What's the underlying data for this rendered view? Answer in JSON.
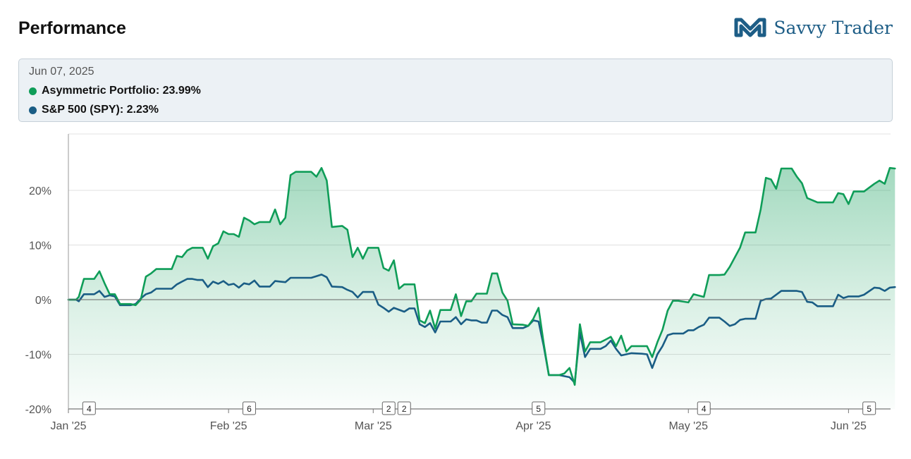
{
  "header": {
    "title": "Performance",
    "brand_name": "Savvy Trader"
  },
  "tooltip": {
    "date": "Jun 07, 2025",
    "rows": [
      {
        "label": "Asymmetric Portfolio: 23.99%",
        "color": "#0f9d58"
      },
      {
        "label": "S&P 500 (SPY): 2.23%",
        "color": "#1a5d85"
      }
    ]
  },
  "chart_data": {
    "type": "area",
    "title": "",
    "xlabel": "",
    "ylabel": "",
    "ylim": [
      -20,
      28
    ],
    "yticks": [
      20,
      10,
      0,
      -10,
      -20
    ],
    "ytick_labels": [
      "20%",
      "10%",
      "0%",
      "-10%",
      "-20%"
    ],
    "x_unit": "days since 2025-01-01",
    "xlim": [
      0,
      159
    ],
    "xticks": [
      {
        "x": 0,
        "label": "Jan '25"
      },
      {
        "x": 31,
        "label": "Feb '25"
      },
      {
        "x": 59,
        "label": "Mar '25"
      },
      {
        "x": 90,
        "label": "Apr '25"
      },
      {
        "x": 120,
        "label": "May '25"
      },
      {
        "x": 151,
        "label": "Jun '25"
      }
    ],
    "flags": [
      {
        "x": 4,
        "label": "4"
      },
      {
        "x": 35,
        "label": "6"
      },
      {
        "x": 62,
        "label": "2"
      },
      {
        "x": 65,
        "label": "2"
      },
      {
        "x": 91,
        "label": "5"
      },
      {
        "x": 123,
        "label": "4"
      },
      {
        "x": 155,
        "label": "5"
      }
    ],
    "grid": true,
    "series": [
      {
        "name": "Asymmetric Portfolio",
        "color": "#0f9d58",
        "fill": true,
        "points": [
          [
            0,
            0
          ],
          [
            1.5,
            0
          ],
          [
            2,
            0.5
          ],
          [
            3,
            3.8
          ],
          [
            5,
            3.8
          ],
          [
            6,
            5.2
          ],
          [
            7,
            3
          ],
          [
            8,
            1
          ],
          [
            9,
            1
          ],
          [
            10,
            -0.8
          ],
          [
            12,
            -0.8
          ],
          [
            13,
            -1
          ],
          [
            14,
            0
          ],
          [
            15,
            4.2
          ],
          [
            16,
            4.8
          ],
          [
            17,
            5.6
          ],
          [
            20,
            5.6
          ],
          [
            21,
            8
          ],
          [
            22,
            7.8
          ],
          [
            23,
            9
          ],
          [
            24,
            9.5
          ],
          [
            26,
            9.5
          ],
          [
            27,
            7.5
          ],
          [
            28,
            9.8
          ],
          [
            29,
            10.3
          ],
          [
            30,
            12.5
          ],
          [
            31,
            12
          ],
          [
            32,
            12
          ],
          [
            33,
            11.5
          ],
          [
            34,
            15
          ],
          [
            35,
            14.5
          ],
          [
            36,
            13.8
          ],
          [
            37,
            14.2
          ],
          [
            39,
            14.2
          ],
          [
            40,
            16.5
          ],
          [
            41,
            13.8
          ],
          [
            42,
            15
          ],
          [
            43,
            22.8
          ],
          [
            44,
            23.4
          ],
          [
            47,
            23.4
          ],
          [
            48,
            22.5
          ],
          [
            49,
            24.1
          ],
          [
            50,
            21.8
          ],
          [
            51,
            13.3
          ],
          [
            53,
            13.5
          ],
          [
            54,
            12.8
          ],
          [
            55,
            7.8
          ],
          [
            56,
            9.5
          ],
          [
            57,
            7.5
          ],
          [
            58,
            9.5
          ],
          [
            60,
            9.5
          ],
          [
            61,
            5.8
          ],
          [
            62,
            5.3
          ],
          [
            63,
            7.2
          ],
          [
            64,
            2
          ],
          [
            65,
            2.8
          ],
          [
            67,
            2.8
          ],
          [
            68,
            -3.8
          ],
          [
            69,
            -4.3
          ],
          [
            70,
            -2
          ],
          [
            71,
            -5.3
          ],
          [
            72,
            -1.9
          ],
          [
            74,
            -1.9
          ],
          [
            75,
            1
          ],
          [
            76,
            -3
          ],
          [
            77,
            -0.3
          ],
          [
            78,
            -0.3
          ],
          [
            79,
            1.1
          ],
          [
            81,
            1.1
          ],
          [
            82,
            4.8
          ],
          [
            83,
            4.8
          ],
          [
            84,
            1.3
          ],
          [
            85,
            -0.2
          ],
          [
            86,
            -4.5
          ],
          [
            88,
            -4.6
          ],
          [
            89,
            -4.8
          ],
          [
            90,
            -3.5
          ],
          [
            91,
            -1.5
          ],
          [
            92,
            -8
          ],
          [
            93,
            -13.8
          ],
          [
            95,
            -13.8
          ],
          [
            96,
            -13.5
          ],
          [
            97,
            -12.5
          ],
          [
            98,
            -15.6
          ],
          [
            99,
            -4.5
          ],
          [
            100,
            -9.5
          ],
          [
            101,
            -7.8
          ],
          [
            103,
            -7.8
          ],
          [
            104,
            -7.3
          ],
          [
            105,
            -6.8
          ],
          [
            106,
            -8.5
          ],
          [
            107,
            -6.6
          ],
          [
            108,
            -9.5
          ],
          [
            109,
            -8.5
          ],
          [
            112,
            -8.5
          ],
          [
            113,
            -10.5
          ],
          [
            114,
            -7.8
          ],
          [
            115,
            -5.5
          ],
          [
            116,
            -2
          ],
          [
            117,
            -0.2
          ],
          [
            118,
            -0.2
          ],
          [
            120,
            -0.5
          ],
          [
            121,
            1
          ],
          [
            123,
            0.5
          ],
          [
            124,
            4.5
          ],
          [
            126,
            4.5
          ],
          [
            127,
            4.6
          ],
          [
            128,
            6
          ],
          [
            130,
            9.5
          ],
          [
            131,
            12.3
          ],
          [
            133,
            12.3
          ],
          [
            134,
            16.5
          ],
          [
            135,
            22.3
          ],
          [
            136,
            22
          ],
          [
            137,
            20.3
          ],
          [
            138,
            24
          ],
          [
            140,
            24
          ],
          [
            141,
            22.5
          ],
          [
            142,
            21.3
          ],
          [
            143,
            18.6
          ],
          [
            144,
            18.2
          ],
          [
            145,
            17.8
          ],
          [
            148,
            17.8
          ],
          [
            149,
            19.5
          ],
          [
            150,
            19.3
          ],
          [
            151,
            17.5
          ],
          [
            152,
            19.8
          ],
          [
            154,
            19.8
          ],
          [
            156,
            21.2
          ],
          [
            157,
            21.8
          ],
          [
            158,
            21.2
          ],
          [
            159,
            24.1
          ],
          [
            160,
            24
          ]
        ]
      },
      {
        "name": "S&P 500 (SPY)",
        "color": "#1a5d85",
        "fill": false,
        "points": [
          [
            0,
            0
          ],
          [
            1.5,
            0
          ],
          [
            2,
            -0.3
          ],
          [
            3,
            1
          ],
          [
            5,
            1
          ],
          [
            6,
            1.6
          ],
          [
            7,
            0.5
          ],
          [
            8,
            0.8
          ],
          [
            9,
            0.6
          ],
          [
            10,
            -1
          ],
          [
            12,
            -1
          ],
          [
            13,
            -0.8
          ],
          [
            14,
            0.2
          ],
          [
            15,
            1
          ],
          [
            16,
            1.3
          ],
          [
            17,
            2
          ],
          [
            20,
            2
          ],
          [
            21,
            2.8
          ],
          [
            22,
            3.3
          ],
          [
            23,
            3.8
          ],
          [
            24,
            3.8
          ],
          [
            25,
            3.6
          ],
          [
            26,
            3.6
          ],
          [
            27,
            2.3
          ],
          [
            28,
            3.3
          ],
          [
            29,
            2.9
          ],
          [
            30,
            3.4
          ],
          [
            31,
            2.7
          ],
          [
            32,
            2.9
          ],
          [
            33,
            2.2
          ],
          [
            34,
            3
          ],
          [
            35,
            2.8
          ],
          [
            36,
            3.5
          ],
          [
            37,
            2.4
          ],
          [
            39,
            2.4
          ],
          [
            40,
            3.4
          ],
          [
            41,
            3.3
          ],
          [
            42,
            3.2
          ],
          [
            43,
            4
          ],
          [
            47,
            4
          ],
          [
            48,
            4.3
          ],
          [
            49,
            4.6
          ],
          [
            50,
            4.1
          ],
          [
            51,
            2.4
          ],
          [
            53,
            2.3
          ],
          [
            54,
            1.8
          ],
          [
            55,
            1.4
          ],
          [
            56,
            0.4
          ],
          [
            57,
            1.4
          ],
          [
            59,
            1.4
          ],
          [
            60,
            -0.9
          ],
          [
            61,
            -1.5
          ],
          [
            62,
            -2.2
          ],
          [
            63,
            -1.5
          ],
          [
            65,
            -2.2
          ],
          [
            66,
            -1.6
          ],
          [
            67,
            -1.6
          ],
          [
            68,
            -4.5
          ],
          [
            69,
            -5
          ],
          [
            70,
            -4.3
          ],
          [
            71,
            -6
          ],
          [
            72,
            -4
          ],
          [
            74,
            -4
          ],
          [
            75,
            -3.2
          ],
          [
            76,
            -4.5
          ],
          [
            77,
            -3.6
          ],
          [
            78,
            -3.8
          ],
          [
            79,
            -3.8
          ],
          [
            80,
            -4.2
          ],
          [
            81,
            -4.2
          ],
          [
            82,
            -2
          ],
          [
            83,
            -2
          ],
          [
            84,
            -2.8
          ],
          [
            85,
            -3.2
          ],
          [
            86,
            -5.2
          ],
          [
            88,
            -5.2
          ],
          [
            89,
            -4.8
          ],
          [
            90,
            -3.8
          ],
          [
            91,
            -4
          ],
          [
            92,
            -8.5
          ],
          [
            93,
            -13.8
          ],
          [
            95,
            -13.8
          ],
          [
            96,
            -14
          ],
          [
            97,
            -14.2
          ],
          [
            98,
            -15.2
          ],
          [
            99,
            -6
          ],
          [
            100,
            -10.5
          ],
          [
            101,
            -9
          ],
          [
            103,
            -9
          ],
          [
            104,
            -8.5
          ],
          [
            105,
            -7.5
          ],
          [
            106,
            -9
          ],
          [
            107,
            -10.2
          ],
          [
            108,
            -10
          ],
          [
            109,
            -9.8
          ],
          [
            111,
            -9.9
          ],
          [
            112,
            -10
          ],
          [
            113,
            -12.5
          ],
          [
            114,
            -10
          ],
          [
            115,
            -8.5
          ],
          [
            116,
            -6.5
          ],
          [
            117,
            -6.2
          ],
          [
            119,
            -6.2
          ],
          [
            120,
            -5.6
          ],
          [
            121,
            -5.6
          ],
          [
            122,
            -5
          ],
          [
            123,
            -4.6
          ],
          [
            124,
            -3.3
          ],
          [
            126,
            -3.3
          ],
          [
            127,
            -4
          ],
          [
            128,
            -4.8
          ],
          [
            129,
            -4.5
          ],
          [
            130,
            -3.7
          ],
          [
            131,
            -3.5
          ],
          [
            133,
            -3.5
          ],
          [
            134,
            -0.2
          ],
          [
            135,
            0.1
          ],
          [
            136,
            0.2
          ],
          [
            138,
            1.6
          ],
          [
            141,
            1.6
          ],
          [
            142,
            1.4
          ],
          [
            143,
            -0.4
          ],
          [
            144,
            -0.5
          ],
          [
            145,
            -1.2
          ],
          [
            148,
            -1.2
          ],
          [
            149,
            0.9
          ],
          [
            150,
            0.3
          ],
          [
            151,
            0.6
          ],
          [
            152,
            0.6
          ],
          [
            153,
            0.6
          ],
          [
            154,
            0.9
          ],
          [
            156,
            2.2
          ],
          [
            157,
            2.1
          ],
          [
            158,
            1.6
          ],
          [
            159,
            2.2
          ],
          [
            160,
            2.3
          ]
        ]
      }
    ]
  }
}
